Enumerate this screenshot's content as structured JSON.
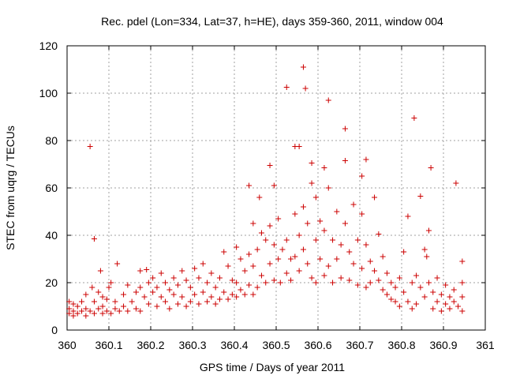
{
  "chart_data": {
    "type": "scatter",
    "title": "Rec. pdel (Lon=334, Lat=37, h=HE), days 359-360, 2011, window 004",
    "xlabel": "GPS time / Days of year 2011",
    "ylabel": "STEC from uqrg / TECUs",
    "xlim": [
      360,
      361
    ],
    "ylim": [
      0,
      120
    ],
    "xticks": [
      "360",
      "360.1",
      "360.2",
      "360.3",
      "360.4",
      "360.5",
      "360.6",
      "360.7",
      "360.8",
      "360.9",
      "361"
    ],
    "yticks": [
      "0",
      "20",
      "40",
      "60",
      "80",
      "100",
      "120"
    ],
    "grid": true,
    "marker": "+",
    "marker_color": "#cc0000",
    "series": [
      {
        "name": "",
        "points": [
          [
            360.005,
            12
          ],
          [
            360.005,
            9
          ],
          [
            360.005,
            7
          ],
          [
            360.015,
            11
          ],
          [
            360.015,
            8
          ],
          [
            360.015,
            6
          ],
          [
            360.025,
            10
          ],
          [
            360.025,
            7
          ],
          [
            360.035,
            12
          ],
          [
            360.035,
            8
          ],
          [
            360.045,
            15
          ],
          [
            360.045,
            9
          ],
          [
            360.045,
            6
          ],
          [
            360.055,
            77.5
          ],
          [
            360.055,
            8
          ],
          [
            360.06,
            18
          ],
          [
            360.065,
            38.5
          ],
          [
            360.065,
            12
          ],
          [
            360.065,
            7
          ],
          [
            360.075,
            16
          ],
          [
            360.075,
            9
          ],
          [
            360.08,
            25
          ],
          [
            360.085,
            14
          ],
          [
            360.085,
            10
          ],
          [
            360.085,
            7
          ],
          [
            360.095,
            13
          ],
          [
            360.095,
            8
          ],
          [
            360.1,
            18
          ],
          [
            360.105,
            20
          ],
          [
            360.105,
            7
          ],
          [
            360.115,
            12
          ],
          [
            360.115,
            9
          ],
          [
            360.12,
            28
          ],
          [
            360.125,
            8
          ],
          [
            360.135,
            15
          ],
          [
            360.135,
            10
          ],
          [
            360.145,
            19
          ],
          [
            360.145,
            8
          ],
          [
            360.155,
            12
          ],
          [
            360.165,
            16
          ],
          [
            360.165,
            9
          ],
          [
            360.175,
            25
          ],
          [
            360.175,
            18
          ],
          [
            360.175,
            8
          ],
          [
            360.185,
            14
          ],
          [
            360.19,
            25.5
          ],
          [
            360.195,
            20
          ],
          [
            360.195,
            11
          ],
          [
            360.205,
            22
          ],
          [
            360.205,
            16
          ],
          [
            360.215,
            18
          ],
          [
            360.215,
            10
          ],
          [
            360.225,
            24
          ],
          [
            360.225,
            14
          ],
          [
            360.235,
            20
          ],
          [
            360.235,
            12
          ],
          [
            360.245,
            17
          ],
          [
            360.245,
            9
          ],
          [
            360.255,
            22
          ],
          [
            360.255,
            15
          ],
          [
            360.265,
            19
          ],
          [
            360.265,
            11
          ],
          [
            360.275,
            25
          ],
          [
            360.275,
            14
          ],
          [
            360.285,
            21
          ],
          [
            360.285,
            10
          ],
          [
            360.295,
            18
          ],
          [
            360.295,
            12
          ],
          [
            360.305,
            26
          ],
          [
            360.305,
            15
          ],
          [
            360.315,
            22
          ],
          [
            360.315,
            11
          ],
          [
            360.325,
            28
          ],
          [
            360.325,
            16
          ],
          [
            360.335,
            20
          ],
          [
            360.335,
            12
          ],
          [
            360.345,
            24
          ],
          [
            360.345,
            14
          ],
          [
            360.355,
            18
          ],
          [
            360.355,
            11
          ],
          [
            360.365,
            22
          ],
          [
            360.365,
            13
          ],
          [
            360.375,
            33
          ],
          [
            360.375,
            16
          ],
          [
            360.385,
            27
          ],
          [
            360.385,
            13
          ],
          [
            360.395,
            21
          ],
          [
            360.395,
            15
          ],
          [
            360.405,
            35
          ],
          [
            360.405,
            20
          ],
          [
            360.405,
            14
          ],
          [
            360.415,
            30
          ],
          [
            360.415,
            17
          ],
          [
            360.425,
            25
          ],
          [
            360.425,
            15
          ],
          [
            360.435,
            61
          ],
          [
            360.435,
            32
          ],
          [
            360.435,
            19
          ],
          [
            360.445,
            45
          ],
          [
            360.445,
            27
          ],
          [
            360.445,
            15
          ],
          [
            360.455,
            34
          ],
          [
            360.455,
            18
          ],
          [
            360.46,
            56
          ],
          [
            360.465,
            41
          ],
          [
            360.465,
            23
          ],
          [
            360.475,
            38
          ],
          [
            360.475,
            20
          ],
          [
            360.485,
            69.5
          ],
          [
            360.485,
            44
          ],
          [
            360.485,
            28
          ],
          [
            360.495,
            61
          ],
          [
            360.495,
            36
          ],
          [
            360.495,
            21
          ],
          [
            360.505,
            47
          ],
          [
            360.505,
            30
          ],
          [
            360.51,
            20
          ],
          [
            360.515,
            34
          ],
          [
            360.525,
            102.5
          ],
          [
            360.525,
            38
          ],
          [
            360.525,
            24
          ],
          [
            360.535,
            30
          ],
          [
            360.535,
            21
          ],
          [
            360.545,
            77.5
          ],
          [
            360.545,
            49
          ],
          [
            360.545,
            31
          ],
          [
            360.555,
            77.5
          ],
          [
            360.555,
            40
          ],
          [
            360.555,
            25
          ],
          [
            360.565,
            111
          ],
          [
            360.565,
            52
          ],
          [
            360.565,
            34
          ],
          [
            360.57,
            102
          ],
          [
            360.575,
            45
          ],
          [
            360.575,
            28
          ],
          [
            360.585,
            70.5
          ],
          [
            360.585,
            62
          ],
          [
            360.585,
            22
          ],
          [
            360.595,
            56
          ],
          [
            360.595,
            38
          ],
          [
            360.595,
            20
          ],
          [
            360.605,
            46
          ],
          [
            360.605,
            30
          ],
          [
            360.615,
            68.5
          ],
          [
            360.615,
            42
          ],
          [
            360.615,
            23
          ],
          [
            360.625,
            97
          ],
          [
            360.625,
            60
          ],
          [
            360.625,
            27
          ],
          [
            360.635,
            38
          ],
          [
            360.635,
            20
          ],
          [
            360.645,
            50
          ],
          [
            360.645,
            30
          ],
          [
            360.655,
            36
          ],
          [
            360.655,
            22
          ],
          [
            360.665,
            85
          ],
          [
            360.665,
            71.5
          ],
          [
            360.665,
            45
          ],
          [
            360.675,
            33
          ],
          [
            360.675,
            21
          ],
          [
            360.685,
            53
          ],
          [
            360.685,
            28
          ],
          [
            360.695,
            38
          ],
          [
            360.695,
            19
          ],
          [
            360.705,
            65
          ],
          [
            360.705,
            49
          ],
          [
            360.705,
            26
          ],
          [
            360.715,
            72
          ],
          [
            360.715,
            36
          ],
          [
            360.715,
            18
          ],
          [
            360.725,
            29
          ],
          [
            360.725,
            20
          ],
          [
            360.735,
            56
          ],
          [
            360.735,
            25
          ],
          [
            360.745,
            40.5
          ],
          [
            360.745,
            21
          ],
          [
            360.755,
            31
          ],
          [
            360.755,
            17
          ],
          [
            360.765,
            24
          ],
          [
            360.765,
            15
          ],
          [
            360.775,
            20
          ],
          [
            360.775,
            13
          ],
          [
            360.785,
            18
          ],
          [
            360.785,
            12
          ],
          [
            360.795,
            22
          ],
          [
            360.795,
            10
          ],
          [
            360.805,
            33
          ],
          [
            360.805,
            16
          ],
          [
            360.815,
            48
          ],
          [
            360.815,
            12
          ],
          [
            360.825,
            20
          ],
          [
            360.825,
            9
          ],
          [
            360.83,
            89.5
          ],
          [
            360.835,
            23
          ],
          [
            360.835,
            11
          ],
          [
            360.845,
            56.5
          ],
          [
            360.845,
            18
          ],
          [
            360.855,
            34
          ],
          [
            360.855,
            14
          ],
          [
            360.86,
            31
          ],
          [
            360.865,
            42
          ],
          [
            360.865,
            20
          ],
          [
            360.87,
            68.5
          ],
          [
            360.875,
            16
          ],
          [
            360.875,
            9
          ],
          [
            360.885,
            22
          ],
          [
            360.885,
            12
          ],
          [
            360.895,
            15
          ],
          [
            360.895,
            8
          ],
          [
            360.905,
            19
          ],
          [
            360.905,
            11
          ],
          [
            360.915,
            14
          ],
          [
            360.915,
            9
          ],
          [
            360.925,
            17
          ],
          [
            360.925,
            12
          ],
          [
            360.93,
            62
          ],
          [
            360.935,
            10
          ],
          [
            360.945,
            29
          ],
          [
            360.945,
            20
          ],
          [
            360.945,
            14
          ],
          [
            360.945,
            8
          ]
        ]
      }
    ]
  }
}
